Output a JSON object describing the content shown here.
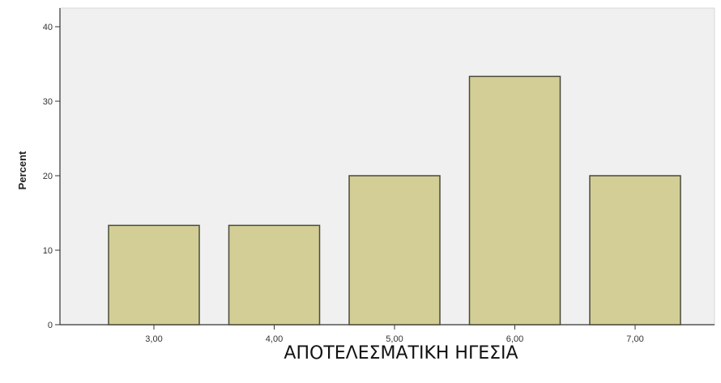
{
  "chart_data": {
    "type": "bar",
    "categories": [
      "3,00",
      "4,00",
      "5,00",
      "6,00",
      "7,00"
    ],
    "values": [
      13.33,
      13.33,
      20.0,
      33.33,
      20.0
    ],
    "title": "",
    "xlabel": "ΑΠΟΤΕΛΕΣΜΑΤΙΚΗ ΗΓΕΣΙΑ",
    "ylabel": "Percent",
    "ylim": [
      0,
      40
    ],
    "yticks": [
      0,
      10,
      20,
      30,
      40
    ],
    "grid": false,
    "legend": "none",
    "colors": {
      "plot_bg": "#f0f0f0",
      "bar_fill": "#d3ce96",
      "bar_stroke": "#4a4a3a",
      "axis": "#333333"
    }
  }
}
